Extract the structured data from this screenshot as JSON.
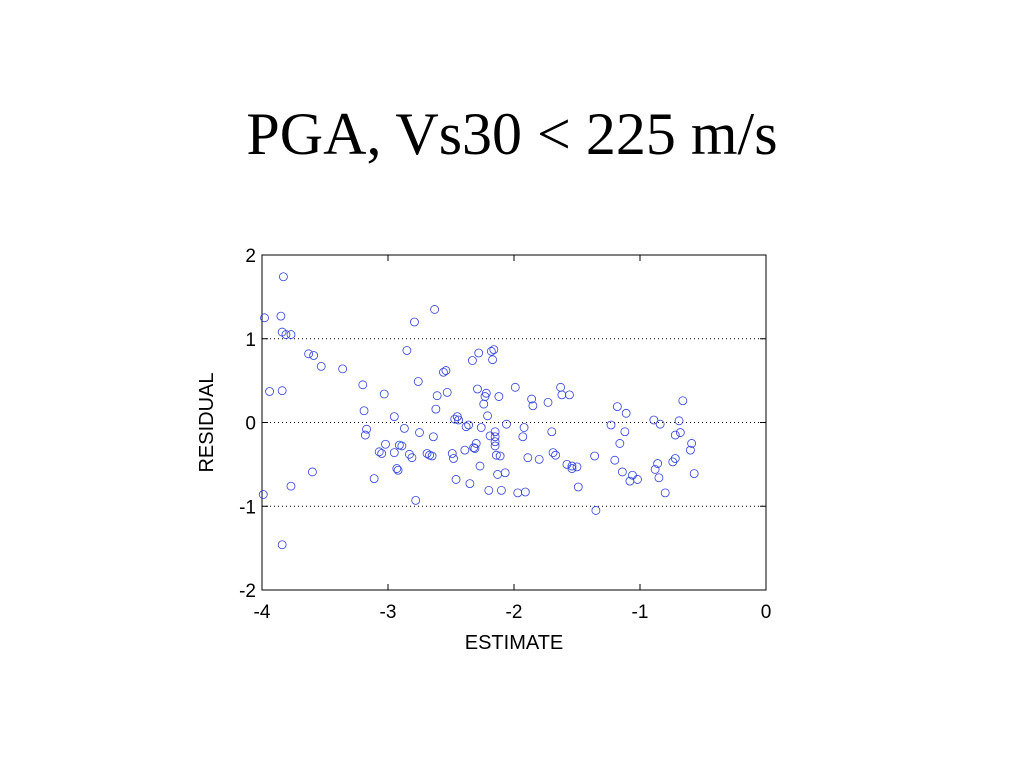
{
  "title": "PGA, Vs30 < 225 m/s",
  "chart_data": {
    "type": "scatter",
    "xlabel": "ESTIMATE",
    "ylabel": "RESIDUAL",
    "xlim": [
      -4,
      0
    ],
    "ylim": [
      -2,
      2
    ],
    "xticks": [
      "-4",
      "-3",
      "-2",
      "-1",
      "0"
    ],
    "yticks": [
      "-2",
      "-1",
      "0",
      "1",
      "2"
    ],
    "grid": "horizontal dotted at y = -1, 0, 1",
    "marker": "open circle",
    "marker_color": "#2f3fd9",
    "points": [
      [
        -3.98,
        1.25
      ],
      [
        -3.85,
        1.27
      ],
      [
        -3.84,
        1.08
      ],
      [
        -3.81,
        1.05
      ],
      [
        -3.77,
        1.05
      ],
      [
        -3.83,
        1.74
      ],
      [
        -3.94,
        0.37
      ],
      [
        -3.84,
        0.38
      ],
      [
        -3.99,
        -0.86
      ],
      [
        -3.77,
        -0.76
      ],
      [
        -3.84,
        -1.46
      ],
      [
        -3.63,
        0.82
      ],
      [
        -3.59,
        0.8
      ],
      [
        -3.53,
        0.67
      ],
      [
        -3.6,
        -0.59
      ],
      [
        -3.36,
        0.64
      ],
      [
        -3.2,
        0.45
      ],
      [
        -3.19,
        0.14
      ],
      [
        -3.17,
        -0.08
      ],
      [
        -3.18,
        -0.15
      ],
      [
        -3.11,
        -0.67
      ],
      [
        -3.07,
        -0.35
      ],
      [
        -3.05,
        -0.37
      ],
      [
        -3.03,
        0.34
      ],
      [
        -3.02,
        -0.26
      ],
      [
        -2.95,
        0.07
      ],
      [
        -2.95,
        -0.36
      ],
      [
        -2.93,
        -0.55
      ],
      [
        -2.92,
        -0.57
      ],
      [
        -2.91,
        -0.27
      ],
      [
        -2.89,
        -0.28
      ],
      [
        -2.87,
        -0.07
      ],
      [
        -2.85,
        0.86
      ],
      [
        -2.83,
        -0.38
      ],
      [
        -2.81,
        -0.42
      ],
      [
        -2.79,
        1.2
      ],
      [
        -2.78,
        -0.93
      ],
      [
        -2.76,
        0.49
      ],
      [
        -2.75,
        -0.12
      ],
      [
        -2.69,
        -0.37
      ],
      [
        -2.67,
        -0.39
      ],
      [
        -2.65,
        -0.4
      ],
      [
        -2.64,
        -0.17
      ],
      [
        -2.63,
        1.35
      ],
      [
        -2.62,
        0.16
      ],
      [
        -2.61,
        0.32
      ],
      [
        -2.56,
        0.6
      ],
      [
        -2.54,
        0.62
      ],
      [
        -2.53,
        0.36
      ],
      [
        -2.49,
        -0.37
      ],
      [
        -2.48,
        -0.43
      ],
      [
        -2.47,
        0.04
      ],
      [
        -2.46,
        -0.68
      ],
      [
        -2.45,
        0.07
      ],
      [
        -2.44,
        0.03
      ],
      [
        -2.39,
        -0.33
      ],
      [
        -2.38,
        -0.05
      ],
      [
        -2.36,
        -0.03
      ],
      [
        -2.35,
        -0.73
      ],
      [
        -2.33,
        0.74
      ],
      [
        -2.32,
        -0.3
      ],
      [
        -2.31,
        -0.31
      ],
      [
        -2.3,
        -0.25
      ],
      [
        -2.29,
        0.4
      ],
      [
        -2.28,
        0.83
      ],
      [
        -2.27,
        -0.52
      ],
      [
        -2.26,
        -0.06
      ],
      [
        -2.24,
        0.22
      ],
      [
        -2.23,
        0.31
      ],
      [
        -2.22,
        0.35
      ],
      [
        -2.21,
        0.08
      ],
      [
        -2.2,
        -0.81
      ],
      [
        -2.19,
        -0.16
      ],
      [
        -2.18,
        0.85
      ],
      [
        -2.17,
        0.75
      ],
      [
        -2.16,
        0.87
      ],
      [
        -2.15,
        -0.11
      ],
      [
        -2.15,
        -0.17
      ],
      [
        -2.15,
        -0.23
      ],
      [
        -2.15,
        -0.28
      ],
      [
        -2.14,
        -0.39
      ],
      [
        -2.13,
        -0.62
      ],
      [
        -2.12,
        0.31
      ],
      [
        -2.11,
        -0.4
      ],
      [
        -2.1,
        -0.81
      ],
      [
        -2.07,
        -0.6
      ],
      [
        -2.06,
        -0.02
      ],
      [
        -1.99,
        0.42
      ],
      [
        -1.97,
        -0.84
      ],
      [
        -1.93,
        -0.17
      ],
      [
        -1.92,
        -0.06
      ],
      [
        -1.91,
        -0.83
      ],
      [
        -1.89,
        -0.42
      ],
      [
        -1.86,
        0.28
      ],
      [
        -1.85,
        0.2
      ],
      [
        -1.8,
        -0.44
      ],
      [
        -1.73,
        0.24
      ],
      [
        -1.7,
        -0.11
      ],
      [
        -1.69,
        -0.36
      ],
      [
        -1.67,
        -0.39
      ],
      [
        -1.63,
        0.42
      ],
      [
        -1.62,
        0.33
      ],
      [
        -1.58,
        -0.5
      ],
      [
        -1.56,
        0.33
      ],
      [
        -1.54,
        -0.55
      ],
      [
        -1.54,
        -0.52
      ],
      [
        -1.5,
        -0.53
      ],
      [
        -1.49,
        -0.77
      ],
      [
        -1.36,
        -0.4
      ],
      [
        -1.35,
        -1.05
      ],
      [
        -1.23,
        -0.03
      ],
      [
        -1.2,
        -0.45
      ],
      [
        -1.18,
        0.19
      ],
      [
        -1.16,
        -0.25
      ],
      [
        -1.14,
        -0.59
      ],
      [
        -1.12,
        -0.11
      ],
      [
        -1.11,
        0.11
      ],
      [
        -1.08,
        -0.7
      ],
      [
        -1.06,
        -0.63
      ],
      [
        -1.02,
        -0.68
      ],
      [
        -0.89,
        0.03
      ],
      [
        -0.88,
        -0.56
      ],
      [
        -0.86,
        -0.49
      ],
      [
        -0.85,
        -0.66
      ],
      [
        -0.84,
        -0.02
      ],
      [
        -0.8,
        -0.84
      ],
      [
        -0.74,
        -0.47
      ],
      [
        -0.72,
        -0.43
      ],
      [
        -0.72,
        -0.15
      ],
      [
        -0.69,
        0.02
      ],
      [
        -0.68,
        -0.12
      ],
      [
        -0.66,
        0.26
      ],
      [
        -0.6,
        -0.33
      ],
      [
        -0.59,
        -0.25
      ],
      [
        -0.57,
        -0.61
      ]
    ]
  }
}
